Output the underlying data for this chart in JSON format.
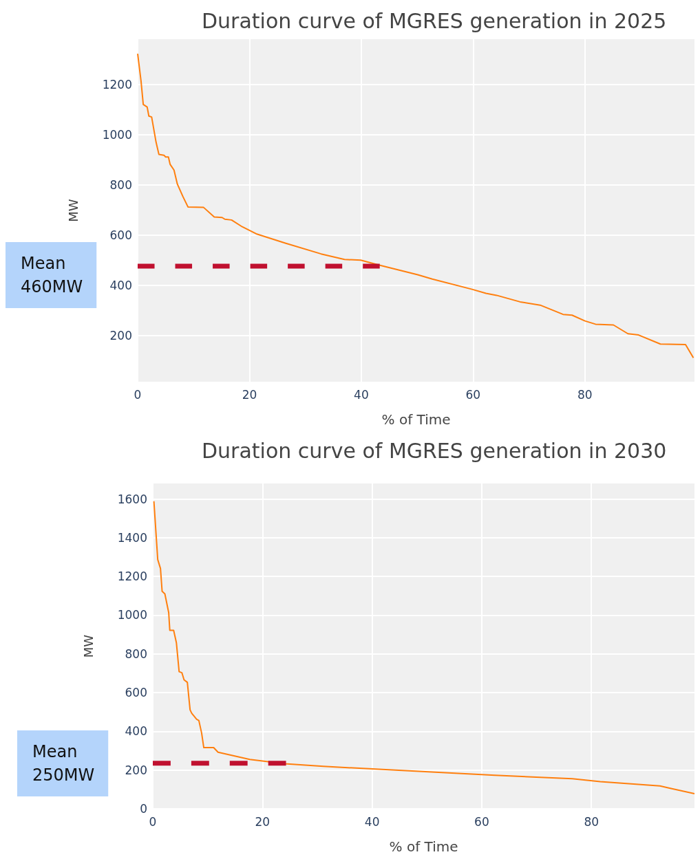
{
  "chart_data": [
    {
      "type": "line",
      "title": "Duration curve of MGRES generation in 2025",
      "xlabel": "% of Time",
      "ylabel": "MW",
      "annotations": [
        "Mean\n460MW"
      ],
      "xlim": [
        0,
        99.6
      ],
      "xticks": [
        0,
        20,
        40,
        60,
        80
      ],
      "ylim": [
        16,
        1380
      ],
      "yticks": [
        200,
        400,
        600,
        800,
        1000,
        1200
      ],
      "grid": true,
      "series": [
        {
          "color": "#ff7f0e",
          "x": [
            0,
            0.6,
            1.0,
            1.7,
            2.0,
            2.5,
            3.3,
            3.8,
            4.7,
            5.0,
            5.5,
            5.8,
            6.5,
            7.1,
            8.1,
            9.0,
            11.8,
            13.7,
            15.1,
            15.6,
            16.8,
            18.7,
            21.2,
            26.4,
            32.8,
            37.0,
            39.9,
            43.1,
            50.1,
            52.7,
            59.8,
            62.3,
            64.2,
            68.4,
            72.0,
            76.1,
            77.7,
            80.0,
            81.9,
            85.1,
            87.7,
            89.6,
            93.5,
            98.0,
            99.4
          ],
          "values": [
            1322,
            1214,
            1120,
            1110,
            1074,
            1070,
            969,
            921,
            918,
            911,
            911,
            882,
            859,
            803,
            753,
            712,
            710,
            672,
            670,
            663,
            660,
            633,
            605,
            568,
            525,
            503,
            500,
            481,
            442,
            425,
            384,
            368,
            360,
            334,
            321,
            284,
            281,
            258,
            245,
            242,
            207,
            202,
            166,
            164,
            111
          ]
        },
        {
          "type": "line",
          "line_style": "dashed",
          "color": "#c0102f",
          "x": [
            0,
            43.3
          ],
          "values": [
            476,
            476
          ]
        }
      ]
    },
    {
      "type": "line",
      "title": "Duration curve of MGRES generation in 2030",
      "xlabel": "% of Time",
      "ylabel": "MW",
      "annotations": [
        "Mean\n250MW"
      ],
      "xlim": [
        0,
        98.8
      ],
      "xticks": [
        0,
        20,
        40,
        60,
        80
      ],
      "ylim": [
        0,
        1680
      ],
      "yticks": [
        0,
        200,
        400,
        600,
        800,
        1000,
        1200,
        1400,
        1600
      ],
      "grid": true,
      "series": [
        {
          "color": "#ff7f0e",
          "x": [
            0.2,
            0.9,
            1.4,
            1.7,
            2.2,
            2.9,
            3.1,
            3.8,
            4.3,
            4.8,
            5.3,
            5.7,
            6.3,
            6.8,
            7.1,
            8.0,
            8.4,
            8.9,
            9.3,
            11.1,
            11.9,
            17.7,
            24.1,
            31.1,
            49.7,
            62.4,
            76.5,
            81.6,
            92.5,
            94.4,
            98.8
          ],
          "values": [
            1588,
            1287,
            1241,
            1123,
            1110,
            1013,
            922,
            922,
            858,
            708,
            703,
            666,
            653,
            511,
            493,
            462,
            456,
            392,
            316,
            316,
            292,
            255,
            233,
            219,
            192,
            173,
            155,
            140,
            118,
            106,
            78
          ]
        },
        {
          "type": "line",
          "line_style": "dashed",
          "color": "#c0102f",
          "x": [
            0,
            24.3
          ],
          "values": [
            235,
            235
          ]
        }
      ]
    }
  ]
}
